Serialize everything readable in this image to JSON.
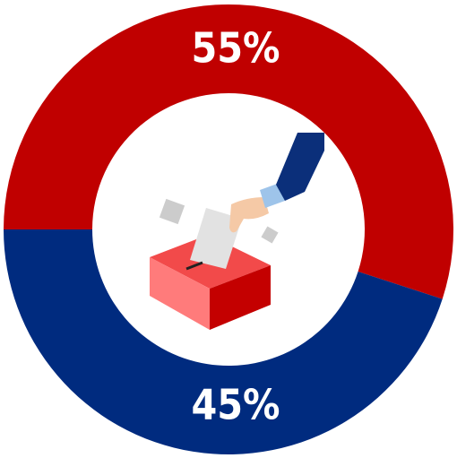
{
  "chart_data": {
    "type": "donut",
    "values": [
      55,
      45
    ],
    "value_labels": [
      "55%",
      "45%"
    ],
    "colors": [
      "#c00000",
      "#002b7f"
    ]
  }
}
